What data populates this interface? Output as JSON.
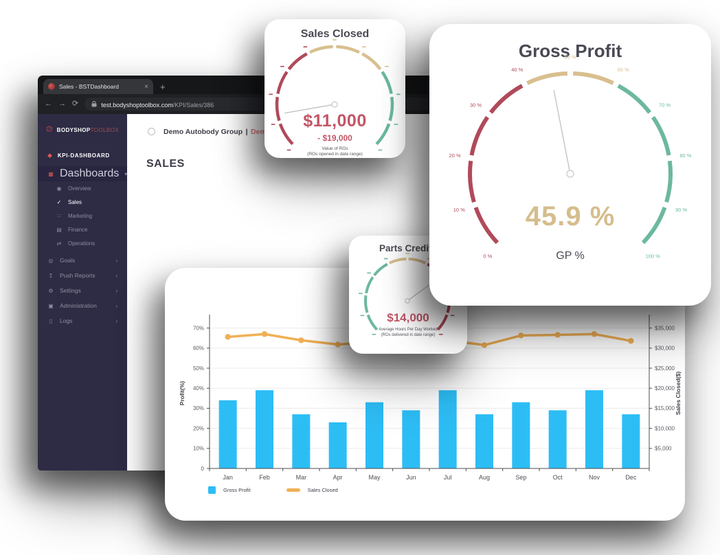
{
  "browser": {
    "tab": {
      "title": "Sales - BSTDashboard",
      "close_glyph": "×",
      "new_tab_glyph": "+"
    },
    "nav": {
      "back_glyph": "←",
      "forward_glyph": "→",
      "refresh_glyph": "⟳"
    },
    "url": {
      "domain": "test.bodyshoptoolbox.com",
      "path": "/KPI/Sales/386"
    }
  },
  "sidebar": {
    "logo": {
      "bold": "BODYSHOP",
      "light": "TOOLBOX"
    },
    "workspace": "KPI-DASHBOARD",
    "sections": [
      {
        "label": "Dashboards",
        "children": [
          {
            "label": "Overview"
          },
          {
            "label": "Sales"
          },
          {
            "label": "Marketing"
          },
          {
            "label": "Finance"
          },
          {
            "label": "Operations"
          }
        ]
      },
      {
        "label": "Goals"
      },
      {
        "label": "Push Reports"
      },
      {
        "label": "Settings"
      },
      {
        "label": "Administration"
      },
      {
        "label": "Logs"
      }
    ]
  },
  "header": {
    "group": "Demo Autobody Group",
    "separator": "|",
    "site": "Demo Site Gr",
    "page_title": "SALES"
  },
  "gauges": [
    {
      "title": "Sales Closed",
      "value": "$11,000",
      "secondary": "- $19,000",
      "caption_line1": "Value of ROs",
      "caption_line2": "(ROs opened in date range)",
      "needle_pct": 13,
      "segments": [
        {
          "from": 0,
          "to": 40,
          "color": "#b04a5a"
        },
        {
          "from": 40,
          "to": 70,
          "color": "#d8bf8f"
        },
        {
          "from": 70,
          "to": 100,
          "color": "#6cb89e"
        }
      ],
      "tick_labels": []
    },
    {
      "title": "Gross Profit",
      "value": "45.9 %",
      "unit_label": "GP %",
      "needle_pct": 45.9,
      "segments": [
        {
          "from": 0,
          "to": 40,
          "color": "#b04a5a"
        },
        {
          "from": 40,
          "to": 60,
          "color": "#d8bf8f"
        },
        {
          "from": 60,
          "to": 100,
          "color": "#6cb89e"
        }
      ],
      "tick_labels": [
        "0 %",
        "10 %",
        "20 %",
        "30 %",
        "40 %",
        "50 %",
        "60 %",
        "70 %",
        "80 %",
        "90 %",
        "100 %"
      ]
    },
    {
      "title": "Parts Credits",
      "value": "$14,000",
      "caption_line1": "Average Hours Per Day Worked",
      "caption_line2": "(ROs delivered in date range)",
      "needle_pct": 70,
      "segments": [
        {
          "from": 0,
          "to": 40,
          "color": "#6cb89e"
        },
        {
          "from": 40,
          "to": 60,
          "color": "#d8bf8f"
        },
        {
          "from": 60,
          "to": 100,
          "color": "#b04a5a"
        }
      ],
      "tick_labels": []
    }
  ],
  "chart_data": {
    "type": "bar",
    "categories": [
      "Jan",
      "Feb",
      "Mar",
      "Apr",
      "May",
      "Jun",
      "Jul",
      "Aug",
      "Sep",
      "Oct",
      "Nov",
      "Dec"
    ],
    "series": [
      {
        "name": "Gross Profit",
        "type": "bar",
        "axis": "left",
        "color": "#2dbdf5",
        "values": [
          34,
          39,
          27,
          23,
          33,
          29,
          39,
          27,
          33,
          29,
          39,
          27
        ]
      },
      {
        "name": "Sales Closed",
        "type": "line",
        "axis": "right",
        "color": "#f0b055",
        "values": [
          32800,
          33500,
          31950,
          30900,
          31500,
          32000,
          31950,
          30750,
          33150,
          33300,
          33500,
          31800
        ]
      }
    ],
    "ylabel_left": "Profit(%)",
    "ylabel_right": "Sales Closed($)",
    "ylim_left": [
      0,
      75
    ],
    "ylim_right": [
      0,
      37500
    ],
    "y_left_ticks": [
      {
        "v": 0,
        "label": "0"
      },
      {
        "v": 10,
        "label": "10%"
      },
      {
        "v": 20,
        "label": "20%"
      },
      {
        "v": 30,
        "label": "30%"
      },
      {
        "v": 40,
        "label": "40%"
      },
      {
        "v": 50,
        "label": "50%"
      },
      {
        "v": 60,
        "label": "60%"
      },
      {
        "v": 70,
        "label": "70%"
      }
    ],
    "y_right_ticks": [
      {
        "v": 5000,
        "label": "$5,000"
      },
      {
        "v": 10000,
        "label": "$10,000"
      },
      {
        "v": 15000,
        "label": "$15,000"
      },
      {
        "v": 20000,
        "label": "$20,000"
      },
      {
        "v": 25000,
        "label": "$25,000"
      },
      {
        "v": 30000,
        "label": "$30,000"
      },
      {
        "v": 35000,
        "label": "$35,000"
      }
    ],
    "grid": true,
    "legend_position": "bottom-left"
  }
}
